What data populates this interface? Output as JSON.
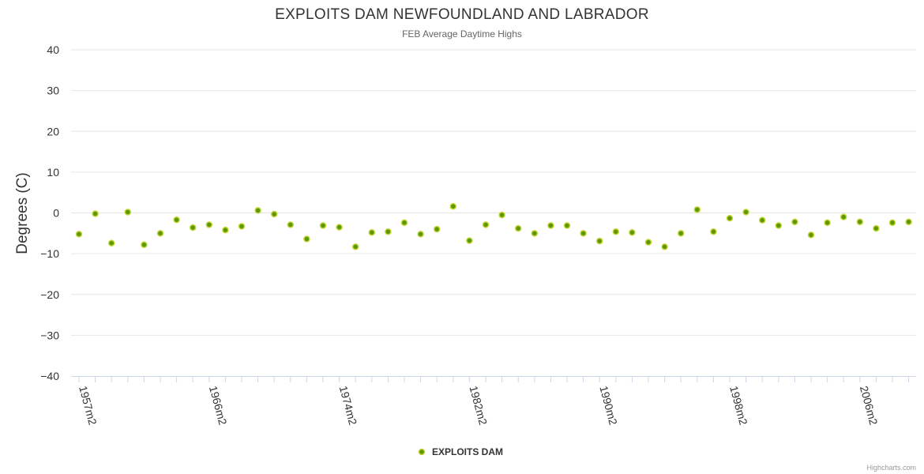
{
  "chart_data": {
    "type": "scatter",
    "title": "EXPLOITS DAM NEWFOUNDLAND AND LABRADOR",
    "subtitle": "FEB Average Daytime Highs",
    "ylabel": "Degrees (C)",
    "xlabel": "",
    "ylim": [
      -40,
      40
    ],
    "yticks": [
      40,
      30,
      20,
      10,
      0,
      -10,
      -20,
      -30,
      -40
    ],
    "x_tick_labels": [
      {
        "index": 0,
        "label": "1957m2"
      },
      {
        "index": 8,
        "label": "1966m2"
      },
      {
        "index": 16,
        "label": "1974m2"
      },
      {
        "index": 24,
        "label": "1982m2"
      },
      {
        "index": 32,
        "label": "1990m2"
      },
      {
        "index": 40,
        "label": "1998m2"
      },
      {
        "index": 48,
        "label": "2006m2"
      }
    ],
    "series": [
      {
        "name": "EXPLOITS DAM",
        "color": "#5a9a00",
        "values": [
          -5.2,
          -0.2,
          -7.4,
          0.2,
          -7.8,
          -5.0,
          -1.7,
          -3.6,
          -2.9,
          -4.2,
          -3.3,
          0.6,
          -0.3,
          -2.9,
          -6.4,
          -3.1,
          -3.5,
          -8.3,
          -4.8,
          -4.6,
          -2.4,
          -5.2,
          -4.0,
          1.6,
          -6.8,
          -2.9,
          -0.5,
          -3.8,
          -5.0,
          -3.1,
          -3.1,
          -5.0,
          -6.9,
          -4.6,
          -4.8,
          -7.2,
          -8.3,
          -5.0,
          0.8,
          -4.6,
          -1.3,
          0.2,
          -1.8,
          -3.1,
          -2.2,
          -5.4,
          -2.4,
          -1.0,
          -2.2,
          -3.8,
          -2.4,
          -2.2
        ]
      }
    ],
    "legend": {
      "position": "bottom-center",
      "label": "EXPLOITS DAM"
    },
    "grid": true,
    "colors": {
      "marker_fill": "#5a9a00",
      "marker_stroke": "#c7d43a",
      "gridline": "#e6e6e6",
      "axis": "#ccd6eb"
    }
  },
  "credits": "Highcharts.com"
}
